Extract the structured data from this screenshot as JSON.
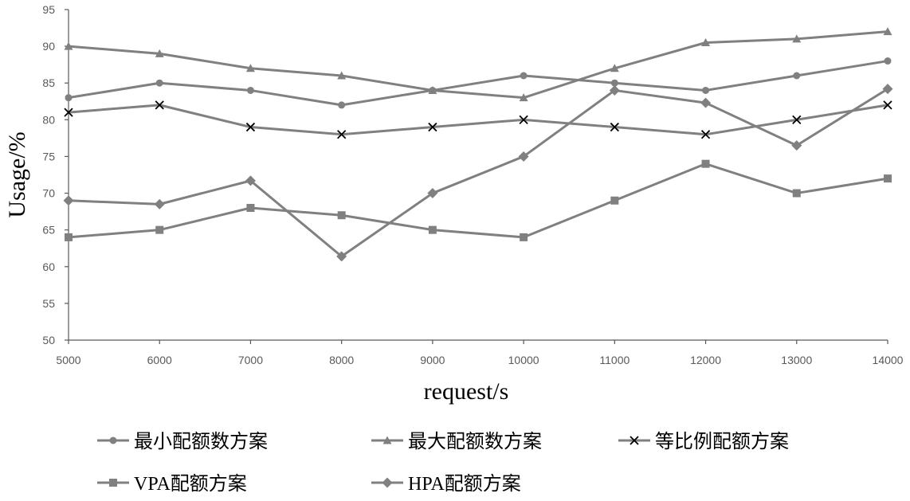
{
  "chart_data": {
    "type": "line",
    "title": "",
    "xlabel": "request/s",
    "ylabel": "Usage/%",
    "x": [
      5000,
      6000,
      7000,
      8000,
      9000,
      10000,
      11000,
      12000,
      13000,
      14000
    ],
    "ylim": [
      50,
      95
    ],
    "yticks": [
      50,
      55,
      60,
      65,
      70,
      75,
      80,
      85,
      90,
      95
    ],
    "grid": false,
    "legend_position": "bottom",
    "colors": {
      "series": "#808080",
      "axis": "#595959",
      "text": "#000000"
    },
    "series": [
      {
        "name": "最小配额数方案",
        "marker": "circle",
        "values": [
          83,
          85,
          84,
          82,
          84,
          86,
          85,
          84,
          86,
          88
        ]
      },
      {
        "name": "最大配额数方案",
        "marker": "triangle",
        "values": [
          90,
          89,
          87,
          86,
          84,
          83,
          87,
          90.5,
          91,
          92
        ]
      },
      {
        "name": "等比例配额方案",
        "marker": "x",
        "values": [
          81,
          82,
          79,
          78,
          79,
          80,
          79,
          78,
          80,
          82
        ]
      },
      {
        "name": "VPA配额方案",
        "marker": "square",
        "values": [
          64,
          65,
          68,
          67,
          65,
          64,
          69,
          74,
          70,
          72
        ]
      },
      {
        "name": "HPA配额方案",
        "marker": "diamond",
        "values": [
          69,
          68.5,
          71.7,
          61.4,
          70,
          75,
          84,
          82.3,
          76.5,
          84.2
        ]
      }
    ]
  }
}
